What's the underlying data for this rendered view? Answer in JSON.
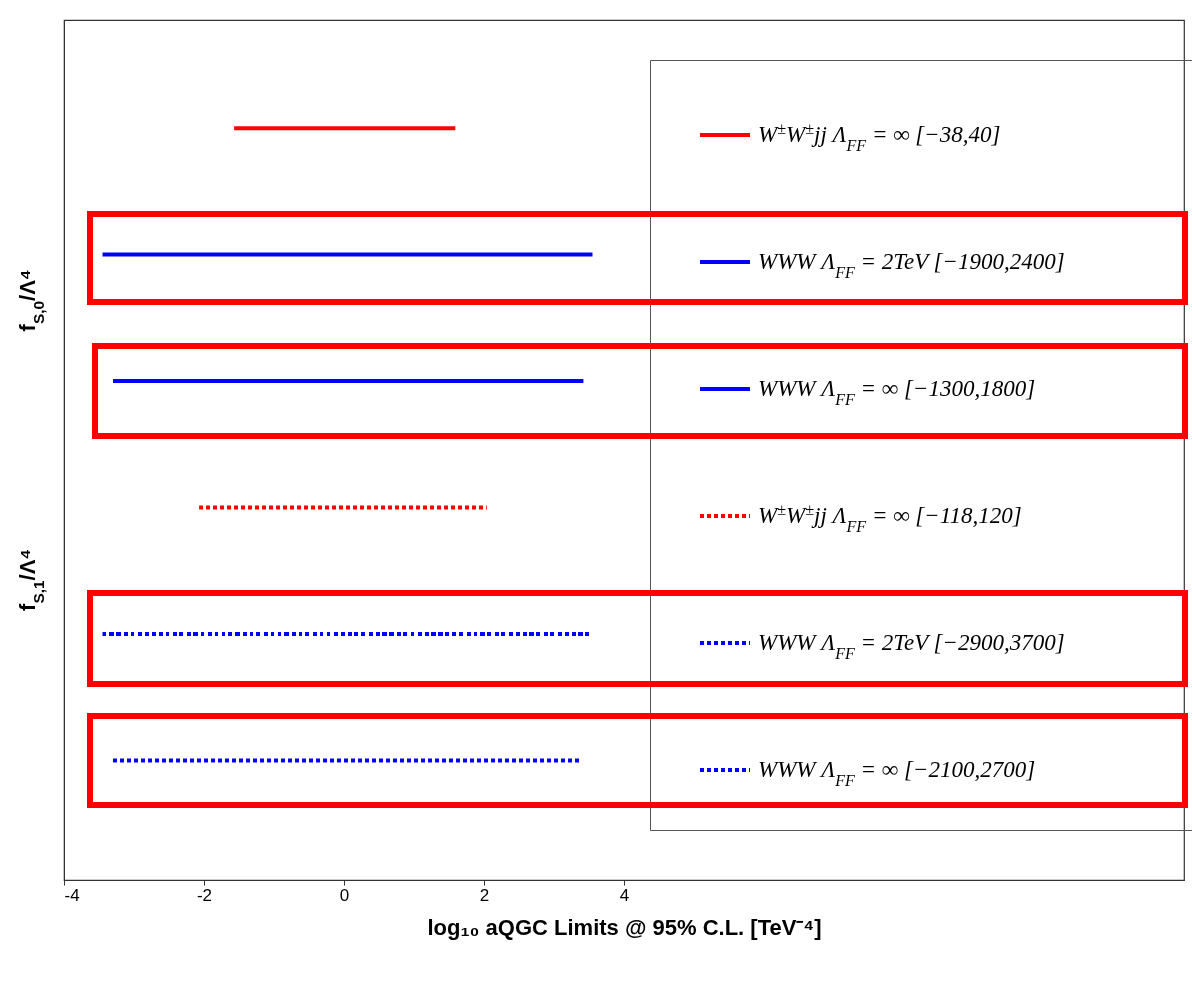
{
  "chart_data": {
    "type": "bar",
    "orientation": "horizontal",
    "xlabel": "log₁₀ aQGC Limits @ 95% C.L. [TeV⁻⁴]",
    "categories": [
      null,
      null,
      null,
      null,
      null,
      null
    ],
    "xlim": [
      -4,
      12
    ],
    "xticks": [
      -4,
      -2,
      0,
      2,
      4
    ],
    "tick_labels": "x",
    "legend": "right",
    "annotations": [
      "f$_{S,0}$/Λ⁴",
      "f$_{S,1}$/Λ⁴"
    ],
    "series": [
      {
        "name": "W$^{±}$W$^{±}$jj Λ$_{FF}$ = ∞   [−38,40]",
        "color": "#ff0000",
        "line_style": "solid",
        "base": [
          -1.57,
          null,
          null,
          null,
          null,
          null
        ],
        "values": [
          3.16,
          null,
          null,
          null,
          null,
          null
        ]
      },
      {
        "name": "WWW Λ$_{FF}$ = 2TeV [−1900,2400]",
        "color": "#0000ff",
        "line_style": "solid",
        "base": [
          null,
          -3.45,
          null,
          null,
          null,
          null
        ],
        "values": [
          null,
          7.0,
          null,
          null,
          null,
          null
        ]
      },
      {
        "name": "WWW Λ$_{FF}$ = ∞      [−1300,1800]",
        "color": "#0000ff",
        "line_style": "solid",
        "base": [
          null,
          null,
          -3.3,
          null,
          null,
          null
        ],
        "values": [
          null,
          null,
          6.72,
          null,
          null,
          null
        ]
      },
      {
        "name": "W$^{±}$W$^{±}$jj  Λ$_{FF}$ = ∞   [−118,120]",
        "color": "#ff0000",
        "line_style": "dotted",
        "base": [
          null,
          null,
          null,
          -2.07,
          null,
          null
        ],
        "values": [
          null,
          null,
          null,
          4.11,
          null,
          null
        ]
      },
      {
        "name": "WWW Λ$_{FF}$ = 2TeV  [−2900,3700]",
        "color": "#0000ff",
        "line_style": "dotted",
        "base": [
          null,
          null,
          null,
          null,
          -3.45,
          null
        ],
        "values": [
          null,
          null,
          null,
          null,
          7.0,
          null
        ]
      },
      {
        "name": "WWW Λ$_{FF}$ = ∞      [−2100,2700]",
        "color": "#0000ff",
        "line_style": "dotted",
        "base": [
          null,
          null,
          null,
          null,
          null,
          -3.3
        ],
        "values": [
          null,
          null,
          null,
          null,
          null,
          6.66
        ]
      }
    ]
  }
}
